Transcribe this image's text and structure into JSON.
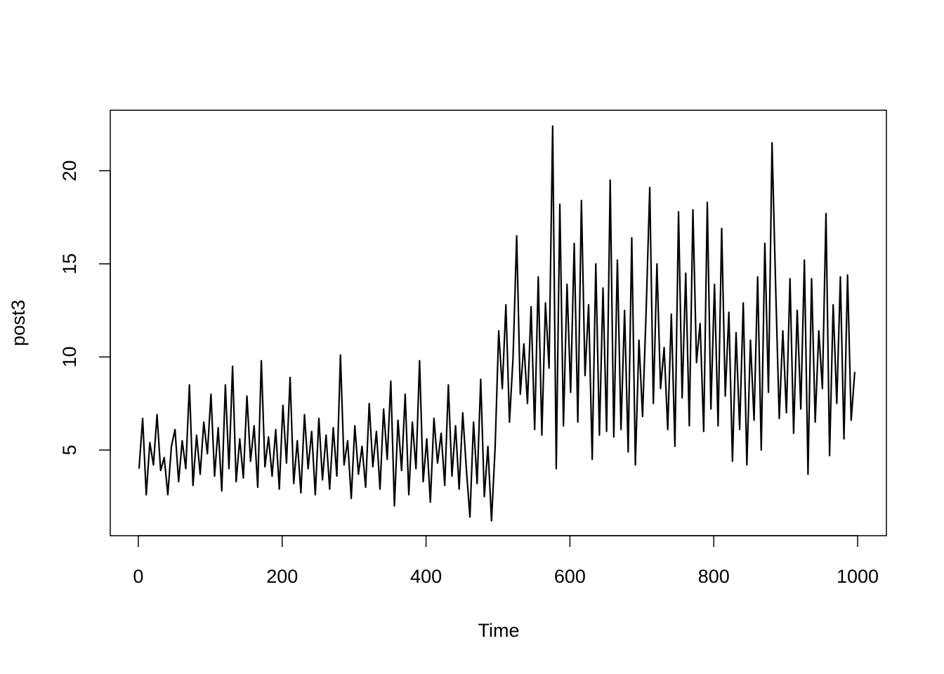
{
  "chart_data": {
    "type": "line",
    "xlabel": "Time",
    "ylabel": "post3",
    "color": "#000000",
    "xlim": [
      -39,
      1040
    ],
    "ylim": [
      0.4,
      23.25
    ],
    "xticks": [
      0,
      200,
      400,
      600,
      800,
      1000
    ],
    "yticks": [
      5,
      10,
      15,
      20
    ],
    "x": [
      1,
      6,
      11,
      16,
      21,
      26,
      31,
      36,
      41,
      46,
      51,
      56,
      61,
      66,
      71,
      76,
      81,
      86,
      91,
      96,
      101,
      106,
      111,
      116,
      121,
      126,
      131,
      136,
      141,
      146,
      151,
      156,
      161,
      166,
      171,
      176,
      181,
      186,
      191,
      196,
      201,
      206,
      211,
      216,
      221,
      226,
      231,
      236,
      241,
      246,
      251,
      256,
      261,
      266,
      271,
      276,
      281,
      286,
      291,
      296,
      301,
      306,
      311,
      316,
      321,
      326,
      331,
      336,
      341,
      346,
      351,
      356,
      361,
      366,
      371,
      376,
      381,
      386,
      391,
      396,
      401,
      406,
      411,
      416,
      421,
      426,
      431,
      436,
      441,
      446,
      451,
      456,
      461,
      466,
      471,
      476,
      481,
      486,
      491,
      496,
      501,
      506,
      511,
      516,
      521,
      526,
      531,
      536,
      541,
      546,
      551,
      556,
      561,
      566,
      571,
      576,
      581,
      586,
      591,
      596,
      601,
      606,
      611,
      616,
      621,
      626,
      631,
      636,
      641,
      646,
      651,
      656,
      661,
      666,
      671,
      676,
      681,
      686,
      691,
      696,
      701,
      706,
      711,
      716,
      721,
      726,
      731,
      736,
      741,
      746,
      751,
      756,
      761,
      766,
      771,
      776,
      781,
      786,
      791,
      796,
      801,
      806,
      811,
      816,
      821,
      826,
      831,
      836,
      841,
      846,
      851,
      856,
      861,
      866,
      871,
      876,
      881,
      886,
      891,
      896,
      901,
      906,
      911,
      916,
      921,
      926,
      931,
      936,
      941,
      946,
      951,
      956,
      961,
      966,
      971,
      976,
      981,
      986,
      991,
      996
    ],
    "values": [
      4.0,
      6.7,
      2.6,
      5.4,
      4.2,
      6.9,
      3.9,
      4.6,
      2.6,
      5.2,
      6.1,
      3.3,
      5.5,
      4.0,
      8.5,
      3.1,
      5.8,
      3.7,
      6.5,
      4.8,
      8.0,
      3.6,
      6.2,
      2.8,
      8.5,
      4.0,
      9.5,
      3.3,
      5.6,
      3.5,
      7.9,
      4.4,
      6.3,
      3.0,
      9.8,
      4.1,
      5.7,
      3.6,
      6.1,
      2.9,
      7.4,
      4.3,
      8.9,
      3.2,
      5.5,
      2.7,
      6.9,
      4.0,
      6.0,
      2.6,
      6.7,
      3.4,
      5.8,
      2.9,
      6.2,
      3.6,
      10.1,
      4.2,
      5.5,
      2.4,
      6.3,
      3.7,
      5.2,
      3.0,
      7.5,
      4.1,
      6.0,
      2.9,
      7.2,
      4.5,
      8.7,
      2.0,
      6.6,
      3.9,
      8.0,
      2.6,
      6.5,
      4.0,
      9.8,
      3.3,
      5.6,
      2.2,
      6.7,
      4.3,
      5.9,
      3.1,
      8.5,
      3.6,
      6.3,
      2.9,
      7.0,
      4.0,
      1.4,
      6.5,
      3.2,
      8.8,
      2.5,
      5.2,
      1.2,
      5.1,
      11.4,
      8.3,
      12.8,
      6.5,
      10.0,
      16.5,
      8.0,
      10.7,
      7.5,
      12.7,
      6.1,
      14.3,
      5.8,
      12.9,
      9.4,
      22.4,
      4.0,
      18.2,
      6.3,
      13.9,
      8.1,
      16.1,
      6.5,
      18.4,
      9.0,
      12.8,
      4.5,
      15.0,
      5.8,
      13.7,
      6.0,
      19.5,
      5.7,
      15.2,
      6.1,
      12.5,
      4.9,
      16.4,
      4.2,
      10.9,
      6.8,
      12.5,
      19.1,
      7.5,
      15.0,
      8.3,
      10.5,
      6.1,
      12.3,
      5.2,
      17.8,
      7.8,
      14.5,
      6.3,
      17.9,
      9.7,
      11.8,
      6.0,
      18.3,
      7.2,
      13.9,
      6.3,
      16.9,
      7.9,
      12.4,
      4.4,
      11.3,
      6.1,
      12.9,
      4.2,
      10.9,
      6.6,
      14.3,
      5.0,
      16.1,
      8.1,
      21.5,
      13.8,
      6.7,
      11.4,
      7.0,
      14.2,
      5.9,
      12.5,
      7.2,
      15.2,
      3.7,
      14.2,
      6.5,
      11.4,
      8.3,
      17.7,
      4.7,
      12.8,
      7.5,
      14.3,
      5.6,
      14.4,
      6.6,
      9.2
    ]
  }
}
